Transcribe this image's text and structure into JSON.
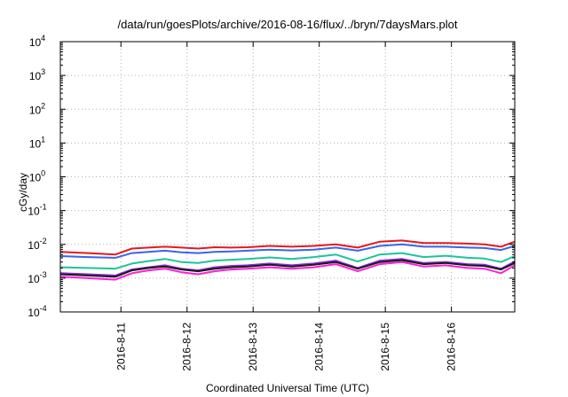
{
  "chart_data": {
    "type": "line",
    "title": "/data/run/goesPlots/archive/2016-08-16/flux/../bryn/7daysMars.plot",
    "xlabel": "Coordinated Universal Time (UTC)",
    "ylabel": "cGy/day",
    "yscale": "log",
    "ylim": [
      0.0001,
      10000
    ],
    "xlim": [
      "2016-08-10T02:00",
      "2016-08-16T23:00"
    ],
    "grid": true,
    "x_ticks": [
      "2016-8-11",
      "2016-8-12",
      "2016-8-13",
      "2016-8-14",
      "2016-8-15",
      "2016-8-16"
    ],
    "y_ticks": [
      {
        "base": "10",
        "exp": "-4"
      },
      {
        "base": "10",
        "exp": "-3"
      },
      {
        "base": "10",
        "exp": "-2"
      },
      {
        "base": "10",
        "exp": "-1"
      },
      {
        "base": "10",
        "exp": "0"
      },
      {
        "base": "10",
        "exp": "1"
      },
      {
        "base": "10",
        "exp": "2"
      },
      {
        "base": "10",
        "exp": "3"
      },
      {
        "base": "10",
        "exp": "4"
      }
    ],
    "x": [
      "2016-08-10T02:00",
      "2016-08-10T12:00",
      "2016-08-10T22:00",
      "2016-08-11T04:00",
      "2016-08-11T10:00",
      "2016-08-11T16:00",
      "2016-08-11T22:00",
      "2016-08-12T04:00",
      "2016-08-12T10:00",
      "2016-08-12T16:00",
      "2016-08-12T22:00",
      "2016-08-13T06:00",
      "2016-08-13T14:00",
      "2016-08-13T22:00",
      "2016-08-14T06:00",
      "2016-08-14T14:00",
      "2016-08-14T22:00",
      "2016-08-15T06:00",
      "2016-08-15T14:00",
      "2016-08-15T22:00",
      "2016-08-16T06:00",
      "2016-08-16T12:00",
      "2016-08-16T18:00",
      "2016-08-16T23:00"
    ],
    "series": [
      {
        "color": "#e41a1c",
        "values": [
          0.006,
          0.0055,
          0.005,
          0.0075,
          0.008,
          0.0085,
          0.008,
          0.0075,
          0.0082,
          0.008,
          0.0082,
          0.009,
          0.0085,
          0.009,
          0.01,
          0.008,
          0.012,
          0.013,
          0.011,
          0.011,
          0.0105,
          0.01,
          0.0085,
          0.012
        ]
      },
      {
        "color": "#3b64e8",
        "values": [
          0.0045,
          0.0042,
          0.004,
          0.0055,
          0.006,
          0.0065,
          0.0058,
          0.0055,
          0.006,
          0.0062,
          0.0065,
          0.007,
          0.0066,
          0.007,
          0.008,
          0.0065,
          0.009,
          0.01,
          0.0085,
          0.0085,
          0.008,
          0.0078,
          0.0068,
          0.009
        ]
      },
      {
        "color": "#1dc49a",
        "values": [
          0.0021,
          0.002,
          0.0019,
          0.0027,
          0.0032,
          0.0037,
          0.003,
          0.0028,
          0.0033,
          0.0035,
          0.0037,
          0.0041,
          0.0037,
          0.0042,
          0.005,
          0.0031,
          0.005,
          0.0055,
          0.0042,
          0.0046,
          0.004,
          0.0038,
          0.003,
          0.0045
        ]
      },
      {
        "color": "#8b2be2",
        "values": [
          0.0014,
          0.0013,
          0.0012,
          0.0018,
          0.0021,
          0.0024,
          0.0019,
          0.0017,
          0.0021,
          0.0023,
          0.0024,
          0.0027,
          0.0024,
          0.0027,
          0.0033,
          0.002,
          0.0033,
          0.0037,
          0.0028,
          0.003,
          0.0026,
          0.0025,
          0.0019,
          0.0031
        ]
      },
      {
        "color": "#1a1a1a",
        "values": [
          0.0013,
          0.0012,
          0.0011,
          0.0017,
          0.002,
          0.0022,
          0.0018,
          0.0016,
          0.0019,
          0.0021,
          0.0022,
          0.0025,
          0.0022,
          0.0025,
          0.003,
          0.0019,
          0.003,
          0.0034,
          0.0026,
          0.0028,
          0.0024,
          0.0023,
          0.0018,
          0.0028
        ]
      },
      {
        "color": "#ff1fd2",
        "values": [
          0.0011,
          0.001,
          0.0009,
          0.0014,
          0.0017,
          0.0019,
          0.0015,
          0.0013,
          0.0016,
          0.0018,
          0.0019,
          0.0021,
          0.0019,
          0.0021,
          0.0026,
          0.0016,
          0.0026,
          0.003,
          0.0022,
          0.0024,
          0.002,
          0.0019,
          0.0014,
          0.0024
        ]
      }
    ]
  }
}
